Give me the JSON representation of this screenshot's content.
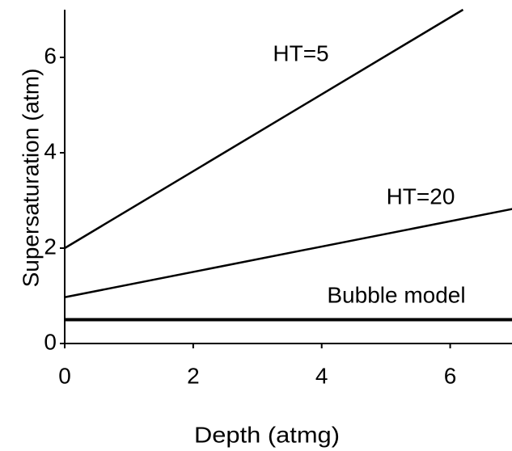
{
  "chart_data": {
    "type": "line",
    "xlabel": "Depth (atmg)",
    "ylabel": "Supersaturation (atm)",
    "series": [
      {
        "name": "HT=5",
        "color": "#000000",
        "x": [
          0,
          6.2
        ],
        "values": [
          2,
          7
        ]
      },
      {
        "name": "HT=20",
        "color": "#000000",
        "x": [
          0,
          7
        ],
        "values": [
          0.97,
          2.83
        ]
      },
      {
        "name": "Bubble model",
        "color": "#000000",
        "x": [
          0,
          7
        ],
        "values": [
          0.5,
          0.5
        ]
      }
    ],
    "xlim": [
      0,
      7
    ],
    "ylim": [
      0,
      7
    ],
    "xticks": [
      0,
      2,
      4,
      6
    ],
    "yticks": [
      0,
      2,
      4,
      6
    ],
    "grid": false
  }
}
